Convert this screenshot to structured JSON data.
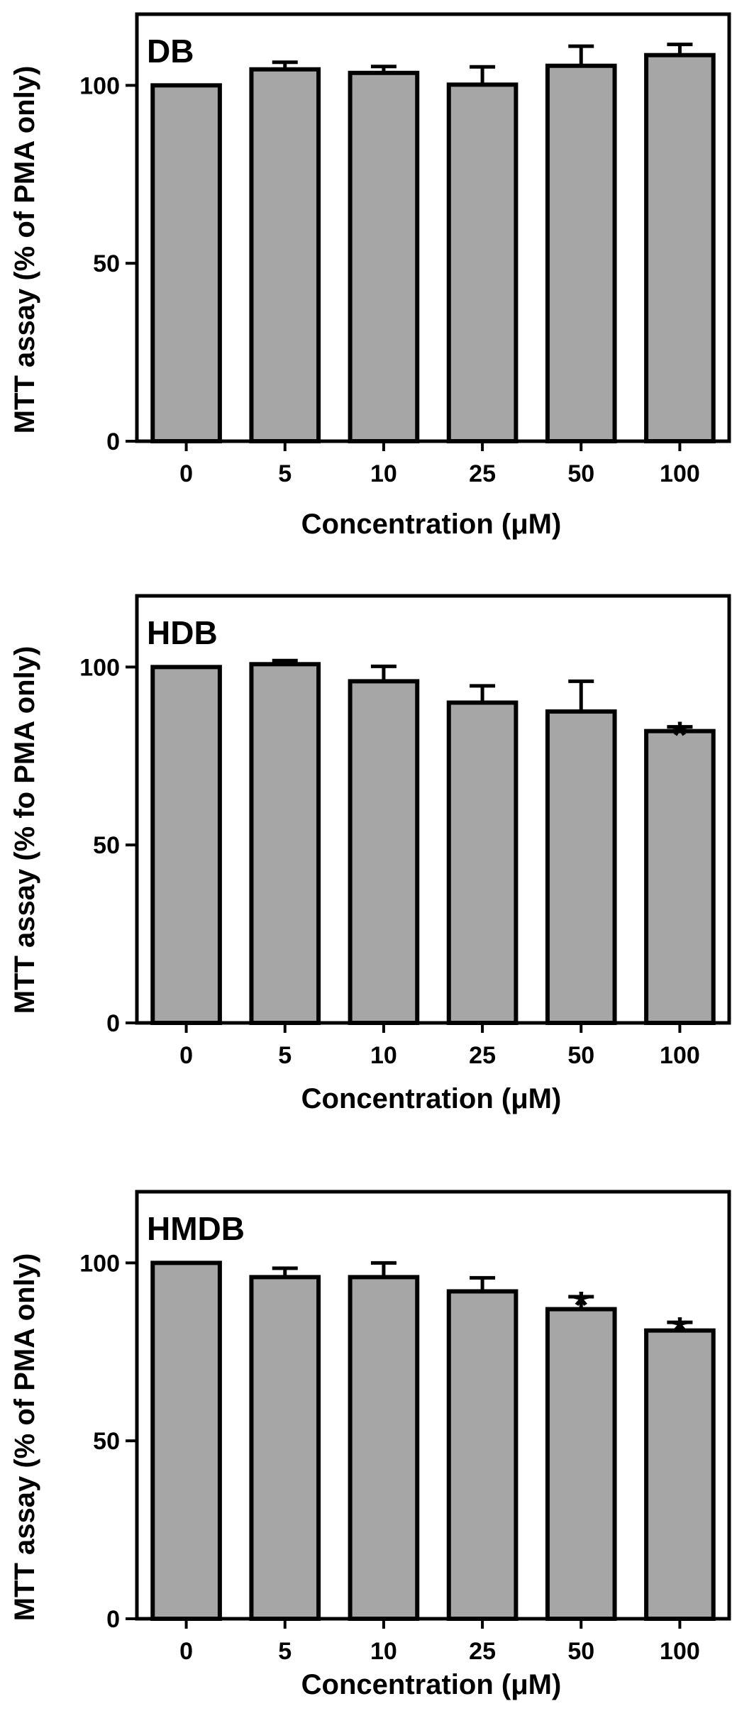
{
  "chart_data": [
    {
      "type": "bar",
      "panel_label": "DB",
      "categories": [
        "0",
        "5",
        "10",
        "25",
        "50",
        "100"
      ],
      "values": [
        100,
        104.5,
        103.5,
        100.2,
        105.5,
        108.5
      ],
      "errors": [
        0,
        2,
        1.8,
        5,
        5.5,
        3
      ],
      "significance": [
        "",
        "",
        "",
        "",
        "",
        ""
      ],
      "xlabel": "Concentration (μM)",
      "ylabel": "MTT assay (% of PMA only)",
      "ylim": [
        0,
        120
      ],
      "yticks": [
        0,
        50,
        100
      ],
      "bar_color": "#a6a6a6"
    },
    {
      "type": "bar",
      "panel_label": "HDB",
      "categories": [
        "0",
        "5",
        "10",
        "25",
        "50",
        "100"
      ],
      "values": [
        100,
        100.8,
        96,
        90,
        87.5,
        82
      ],
      "errors": [
        0,
        1,
        4.2,
        4.7,
        8.5,
        1.2
      ],
      "significance": [
        "",
        "",
        "",
        "",
        "",
        "*"
      ],
      "xlabel": "Concentration (μM)",
      "ylabel": "MTT assay (% fo PMA only)",
      "ylim": [
        0,
        120
      ],
      "yticks": [
        0,
        50,
        100
      ],
      "bar_color": "#a6a6a6"
    },
    {
      "type": "bar",
      "panel_label": "HMDB",
      "categories": [
        "0",
        "5",
        "10",
        "25",
        "50",
        "100"
      ],
      "values": [
        100,
        96,
        96,
        92,
        87,
        81
      ],
      "errors": [
        0,
        2.5,
        4,
        3.8,
        3.5,
        2.3
      ],
      "significance": [
        "",
        "",
        "",
        "",
        "*",
        "*"
      ],
      "xlabel": "Concentration (μM)",
      "ylabel": "MTT assay (% of PMA only)",
      "ylim": [
        0,
        120
      ],
      "yticks": [
        0,
        50,
        100
      ],
      "bar_color": "#a6a6a6"
    }
  ]
}
